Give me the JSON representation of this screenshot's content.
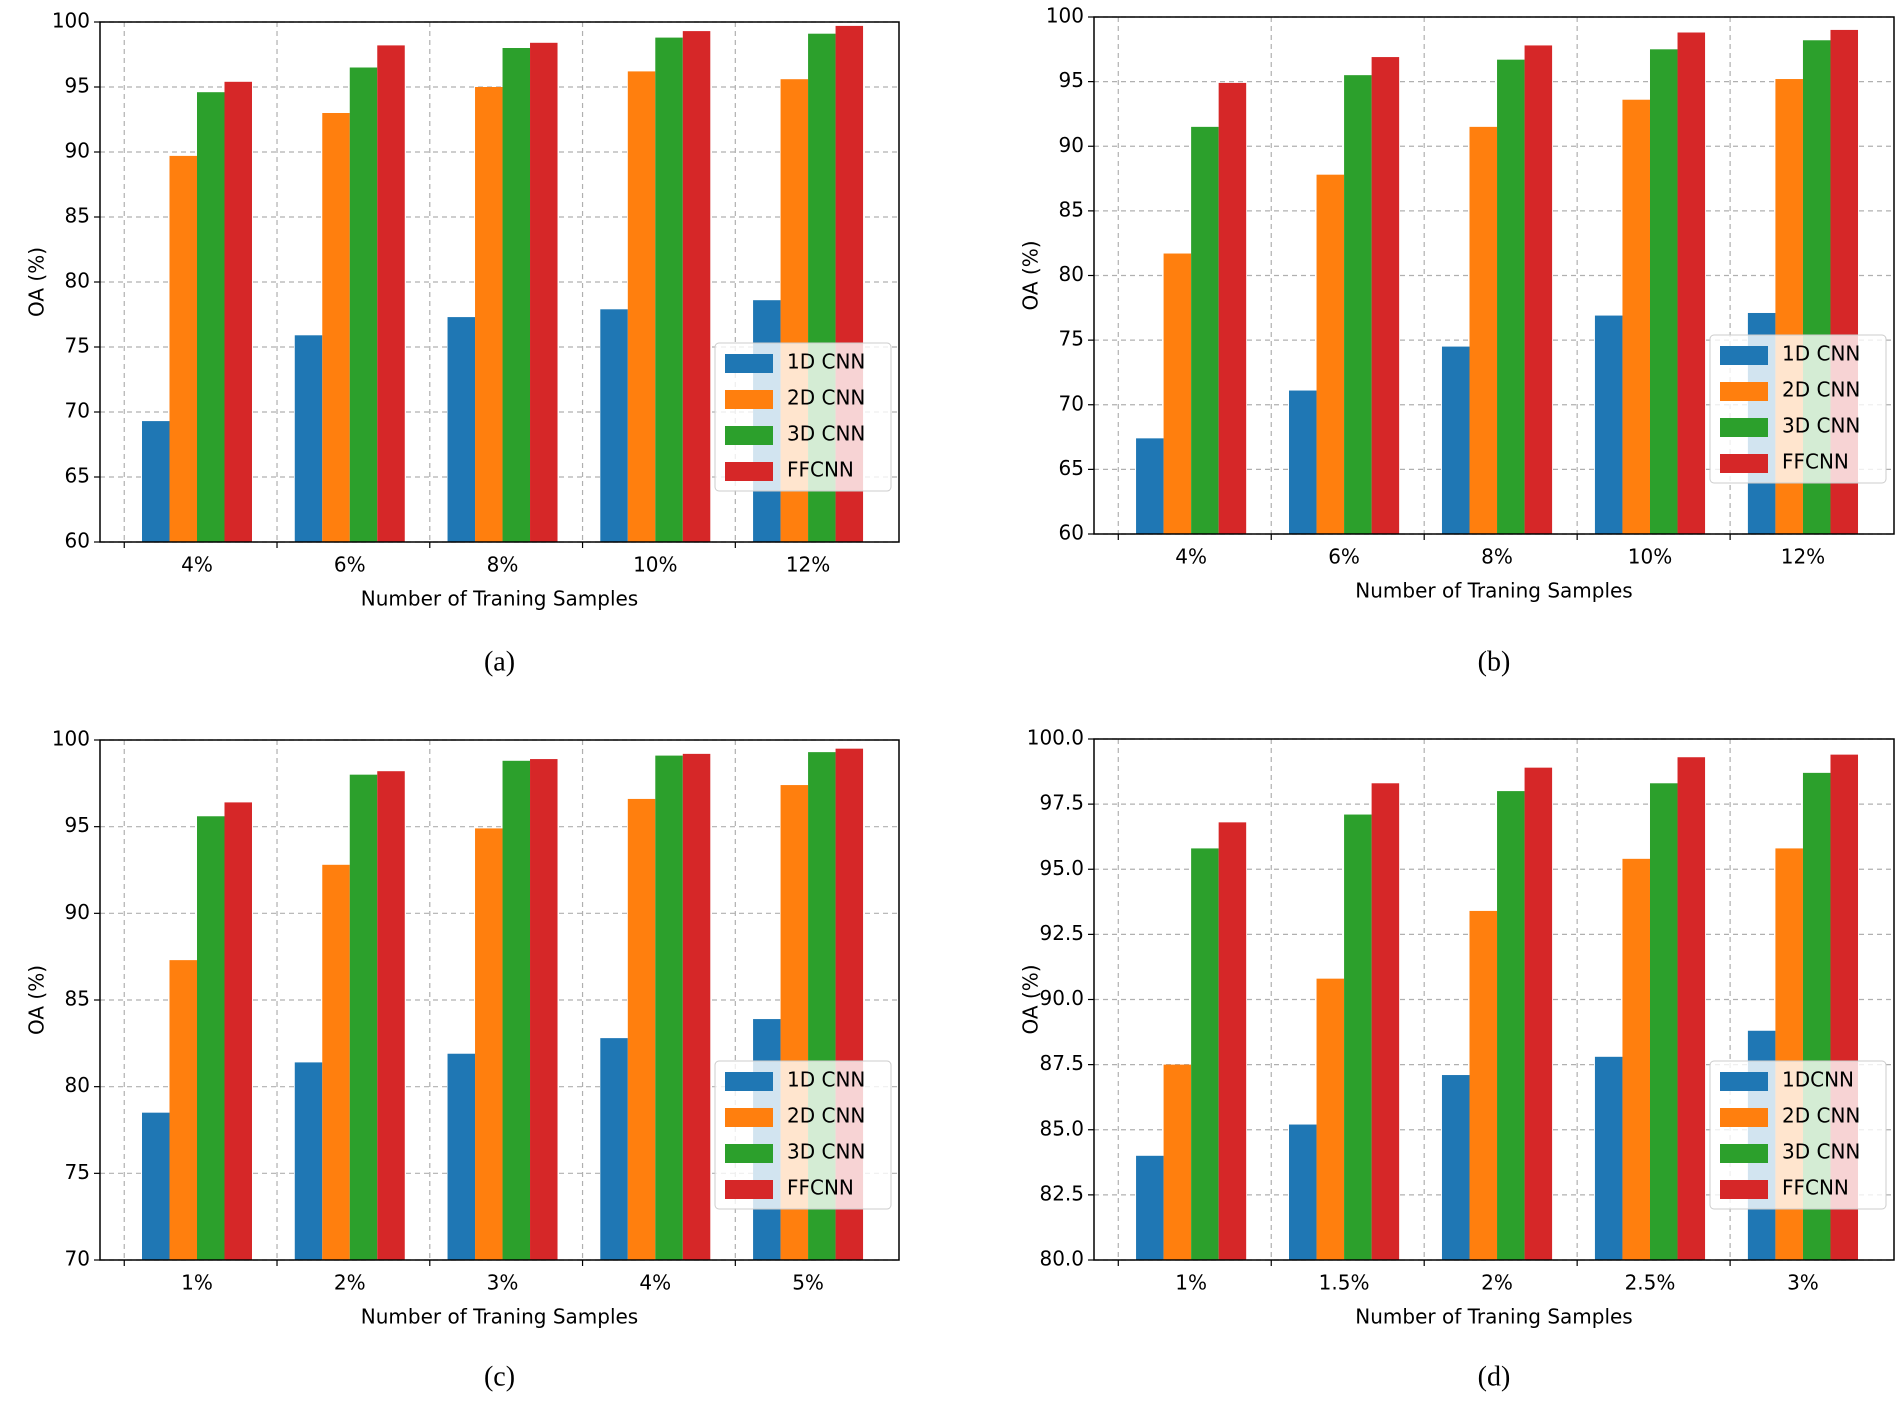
{
  "chart_data": [
    {
      "type": "bar",
      "caption": "(a)",
      "x_label": "Number of Traning Samples",
      "y_label": "OA (%)",
      "categories": [
        "4%",
        "6%",
        "8%",
        "10%",
        "12%"
      ],
      "series": [
        {
          "name": "1D CNN",
          "color": "#1f77b4",
          "values": [
            69.3,
            75.9,
            77.3,
            77.9,
            78.6
          ]
        },
        {
          "name": "2D CNN",
          "color": "#ff7f0e",
          "values": [
            89.7,
            93.0,
            95.0,
            96.2,
            95.6
          ]
        },
        {
          "name": "3D CNN",
          "color": "#2ca02c",
          "values": [
            94.6,
            96.5,
            98.0,
            98.8,
            99.1
          ]
        },
        {
          "name": "FFCNN",
          "color": "#d62728",
          "values": [
            95.4,
            98.2,
            98.4,
            99.3,
            99.7
          ]
        }
      ],
      "ylim": [
        60,
        100
      ],
      "yticks": [
        60,
        65,
        70,
        75,
        80,
        85,
        90,
        95,
        100
      ],
      "grid": true,
      "legend": "lower right"
    },
    {
      "type": "bar",
      "caption": "(b)",
      "x_label": "Number of Traning Samples",
      "y_label": "OA (%)",
      "categories": [
        "4%",
        "6%",
        "8%",
        "10%",
        "12%"
      ],
      "series": [
        {
          "name": "1D CNN",
          "color": "#1f77b4",
          "values": [
            67.4,
            71.1,
            74.5,
            76.9,
            77.1
          ]
        },
        {
          "name": "2D CNN",
          "color": "#ff7f0e",
          "values": [
            81.7,
            87.8,
            91.5,
            93.6,
            95.2
          ]
        },
        {
          "name": "3D CNN",
          "color": "#2ca02c",
          "values": [
            91.5,
            95.5,
            96.7,
            97.5,
            98.2
          ]
        },
        {
          "name": "FFCNN",
          "color": "#d62728",
          "values": [
            94.9,
            96.9,
            97.8,
            98.8,
            99.0
          ]
        }
      ],
      "ylim": [
        60,
        100
      ],
      "yticks": [
        60,
        65,
        70,
        75,
        80,
        85,
        90,
        95,
        100
      ],
      "grid": true,
      "legend": "lower right"
    },
    {
      "type": "bar",
      "caption": "(c)",
      "x_label": "Number of Traning Samples",
      "y_label": "OA (%)",
      "categories": [
        "1%",
        "2%",
        "3%",
        "4%",
        "5%"
      ],
      "series": [
        {
          "name": "1D CNN",
          "color": "#1f77b4",
          "values": [
            78.5,
            81.4,
            81.9,
            82.8,
            83.9
          ]
        },
        {
          "name": "2D CNN",
          "color": "#ff7f0e",
          "values": [
            87.3,
            92.8,
            94.9,
            96.6,
            97.4
          ]
        },
        {
          "name": "3D CNN",
          "color": "#2ca02c",
          "values": [
            95.6,
            98.0,
            98.8,
            99.1,
            99.3
          ]
        },
        {
          "name": "FFCNN",
          "color": "#d62728",
          "values": [
            96.4,
            98.2,
            98.9,
            99.2,
            99.5
          ]
        }
      ],
      "ylim": [
        70,
        100
      ],
      "yticks": [
        70,
        75,
        80,
        85,
        90,
        95,
        100
      ],
      "grid": true,
      "legend": "lower right"
    },
    {
      "type": "bar",
      "caption": "(d)",
      "x_label": "Number of Traning Samples",
      "y_label": "OA (%)",
      "categories": [
        "1%",
        "1.5%",
        "2%",
        "2.5%",
        "3%"
      ],
      "series": [
        {
          "name": "1DCNN",
          "color": "#1f77b4",
          "values": [
            84.0,
            85.2,
            87.1,
            87.8,
            88.8
          ]
        },
        {
          "name": "2D CNN",
          "color": "#ff7f0e",
          "values": [
            87.5,
            90.8,
            93.4,
            95.4,
            95.8
          ]
        },
        {
          "name": "3D CNN",
          "color": "#2ca02c",
          "values": [
            95.8,
            97.1,
            98.0,
            98.3,
            98.7
          ]
        },
        {
          "name": "FFCNN",
          "color": "#d62728",
          "values": [
            96.8,
            98.3,
            98.9,
            99.3,
            99.4
          ]
        }
      ],
      "ylim": [
        80,
        100
      ],
      "yticks": [
        {
          "value": 80,
          "label": "80.0"
        },
        82.5,
        {
          "value": 85,
          "label": "85.0"
        },
        87.5,
        {
          "value": 90,
          "label": "90.0"
        },
        92.5,
        {
          "value": 95,
          "label": "95.0"
        },
        97.5,
        {
          "value": 100,
          "label": "100.0"
        }
      ],
      "grid": true,
      "legend": "lower right"
    }
  ]
}
